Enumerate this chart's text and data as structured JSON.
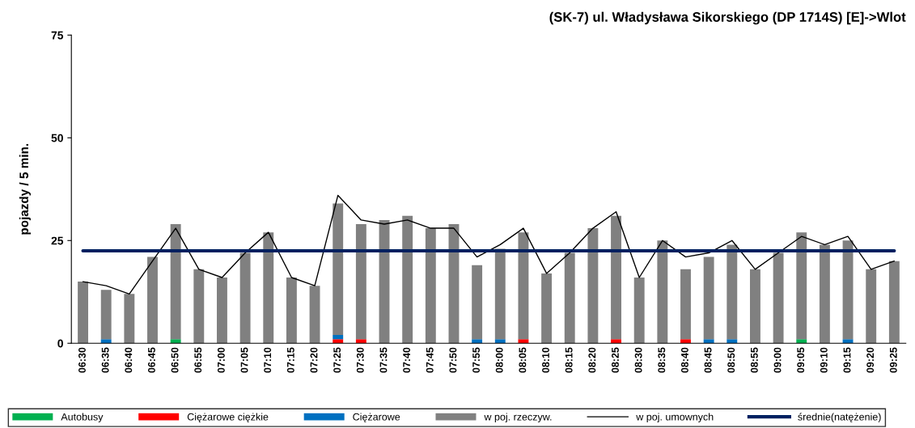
{
  "chart_data": {
    "type": "bar",
    "stacked": true,
    "title": "(SK-7) ul. Władysława Sikorskiego (DP 1714S) [E]->Wlot",
    "ylabel": "pojazdy / 5 min.",
    "categories": [
      "06:30",
      "06:35",
      "06:40",
      "06:45",
      "06:50",
      "06:55",
      "07:00",
      "07:05",
      "07:10",
      "07:15",
      "07:20",
      "07:25",
      "07:30",
      "07:35",
      "07:40",
      "07:45",
      "07:50",
      "07:55",
      "08:00",
      "08:05",
      "08:10",
      "08:15",
      "08:20",
      "08:25",
      "08:30",
      "08:35",
      "08:40",
      "08:45",
      "08:50",
      "08:55",
      "09:00",
      "09:05",
      "09:10",
      "09:15",
      "09:20",
      "09:25"
    ],
    "series": [
      {
        "name": "Autobusy",
        "color": "#00b050",
        "values": [
          0,
          0,
          0,
          0,
          1,
          0,
          0,
          0,
          0,
          0,
          0,
          0,
          0,
          0,
          0,
          0,
          0,
          0,
          0,
          0,
          0,
          0,
          0,
          0,
          0,
          0,
          0,
          0,
          0,
          0,
          0,
          1,
          0,
          0,
          0,
          0
        ]
      },
      {
        "name": "Ciężarowe ciężkie",
        "color": "#ff0000",
        "values": [
          0,
          0,
          0,
          0,
          0,
          0,
          0,
          0,
          0,
          0,
          0,
          1,
          1,
          0,
          0,
          0,
          0,
          0,
          0,
          1,
          0,
          0,
          0,
          1,
          0,
          0,
          1,
          0,
          0,
          0,
          0,
          0,
          0,
          0,
          0,
          0
        ]
      },
      {
        "name": "Ciężarowe",
        "color": "#0070c0",
        "values": [
          0,
          1,
          0,
          0,
          0,
          0,
          0,
          0,
          0,
          0,
          0,
          1,
          0,
          0,
          0,
          0,
          0,
          1,
          1,
          0,
          0,
          0,
          0,
          0,
          0,
          0,
          0,
          1,
          1,
          0,
          0,
          0,
          0,
          1,
          0,
          0
        ]
      },
      {
        "name": "w poj. rzeczyw.",
        "color": "#808080",
        "values": [
          15,
          12,
          12,
          21,
          28,
          18,
          16,
          22,
          27,
          16,
          14,
          32,
          28,
          30,
          31,
          28,
          29,
          18,
          22,
          26,
          17,
          22,
          28,
          30,
          16,
          25,
          17,
          20,
          23,
          18,
          22,
          26,
          24,
          24,
          18,
          20
        ]
      },
      {
        "name": "w poj. umownych",
        "type": "line",
        "color": "#000000",
        "values": [
          15,
          14,
          12,
          20,
          28,
          18,
          16,
          22,
          27,
          16,
          14,
          36,
          30,
          29,
          30,
          28,
          28,
          21,
          24,
          28,
          17,
          22,
          28,
          32,
          16,
          25,
          21,
          22,
          25,
          18,
          22,
          26,
          24,
          26,
          18,
          20
        ]
      },
      {
        "name": "średnie(natężenie)",
        "type": "line",
        "color": "#002060",
        "values": [
          22.5,
          22.5,
          22.5,
          22.5,
          22.5,
          22.5,
          22.5,
          22.5,
          22.5,
          22.5,
          22.5,
          22.5,
          22.5,
          22.5,
          22.5,
          22.5,
          22.5,
          22.5,
          22.5,
          22.5,
          22.5,
          22.5,
          22.5,
          22.5,
          22.5,
          22.5,
          22.5,
          22.5,
          22.5,
          22.5,
          22.5,
          22.5,
          22.5,
          22.5,
          22.5,
          22.5
        ]
      }
    ],
    "ylim": [
      0,
      75
    ],
    "yticks": [
      0,
      25,
      50,
      75
    ],
    "grid": false,
    "legend": "bottom"
  }
}
